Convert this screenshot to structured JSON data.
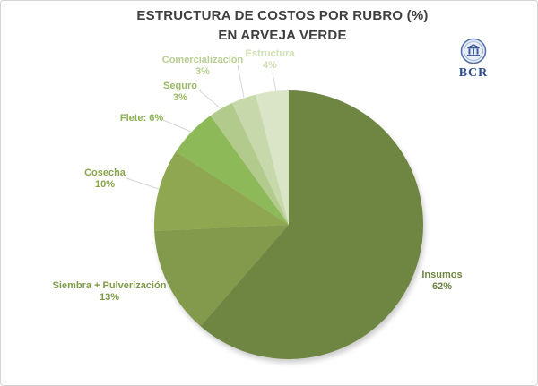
{
  "title": {
    "line1": "ESTRUCTURA DE COSTOS POR RUBRO (%)",
    "line2": "EN ARVEJA VERDE"
  },
  "logo": {
    "text": "BCR"
  },
  "chart_data": {
    "type": "pie",
    "title": "ESTRUCTURA DE COSTOS POR RUBRO (%) EN ARVEJA VERDE",
    "legend_position": "none",
    "start_angle_deg": -90,
    "direction": "clockwise",
    "slices": [
      {
        "name": "Insumos",
        "value": 62,
        "pct_text": "62%",
        "color": "#6e8641",
        "label_color": "#6e8641"
      },
      {
        "name": "Siembra + Pulverización",
        "value": 13,
        "pct_text": "13%",
        "color": "#839a4c",
        "label_color": "#7d9a46"
      },
      {
        "name": "Cosecha",
        "value": 10,
        "pct_text": "10%",
        "color": "#8fa751",
        "label_color": "#89a54c"
      },
      {
        "name": "Flete: 6%",
        "value": 6,
        "pct_text": "",
        "color": "#8eb958",
        "label_color": "#8ab24e"
      },
      {
        "name": "Seguro",
        "value": 3,
        "pct_text": "3%",
        "color": "#b2ca8c",
        "label_color": "#9cba66"
      },
      {
        "name": "Comercialización",
        "value": 3,
        "pct_text": "3%",
        "color": "#c7d8ab",
        "label_color": "#b7cf92"
      },
      {
        "name": "Estructura",
        "value": 4,
        "pct_text": "4%",
        "color": "#dae5c7",
        "label_color": "#cfe0b5"
      }
    ]
  }
}
